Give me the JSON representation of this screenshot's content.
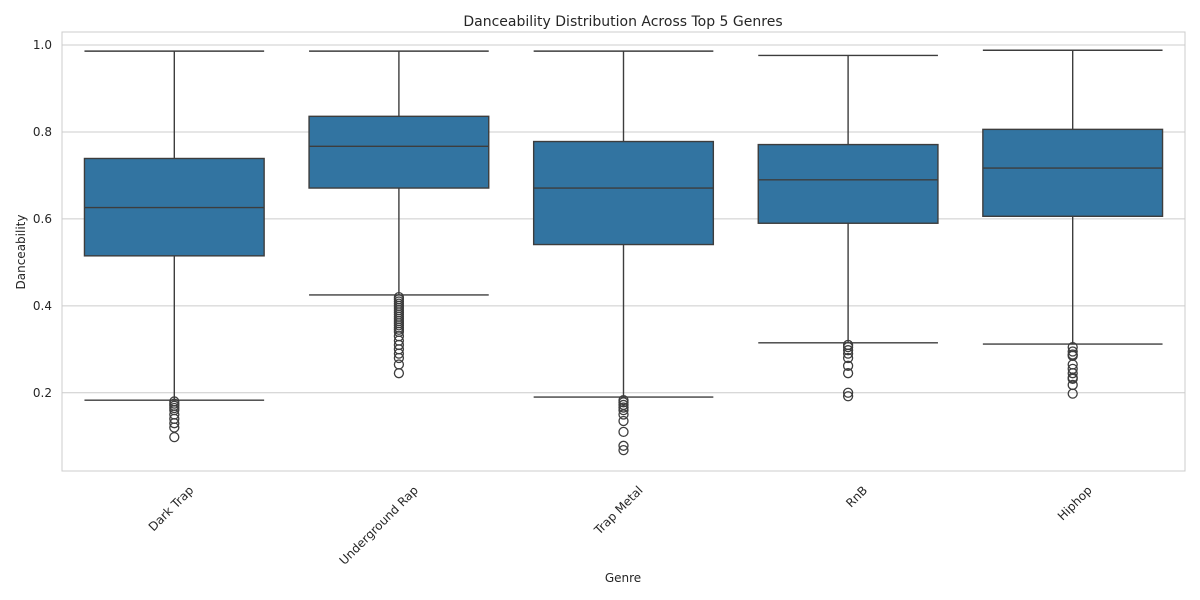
{
  "chart_data": {
    "type": "box",
    "title": "Danceability Distribution Across Top 5 Genres",
    "xlabel": "Genre",
    "ylabel": "Danceability",
    "ylim": [
      0.02,
      1.03
    ],
    "yticks": [
      "0.2",
      "0.4",
      "0.6",
      "0.8",
      "1.0"
    ],
    "grid": true,
    "legend": "none",
    "box_color": "#3274a1",
    "line_color": "#3d3d3d",
    "grid_color": "#cccccc",
    "categories": [
      "Dark Trap",
      "Underground Rap",
      "Trap Metal",
      "RnB",
      "Hiphop"
    ],
    "boxes": [
      {
        "category": "Dark Trap",
        "whisker_low": 0.183,
        "q1": 0.515,
        "median": 0.626,
        "q3": 0.739,
        "whisker_high": 0.986,
        "outliers": [
          0.18,
          0.175,
          0.17,
          0.165,
          0.16,
          0.15,
          0.14,
          0.13,
          0.12,
          0.098
        ]
      },
      {
        "category": "Underground Rap",
        "whisker_low": 0.425,
        "q1": 0.671,
        "median": 0.767,
        "q3": 0.836,
        "whisker_high": 0.986,
        "outliers": [
          0.42,
          0.415,
          0.41,
          0.405,
          0.4,
          0.395,
          0.39,
          0.385,
          0.38,
          0.375,
          0.37,
          0.365,
          0.36,
          0.355,
          0.35,
          0.345,
          0.34,
          0.33,
          0.32,
          0.31,
          0.3,
          0.29,
          0.28,
          0.265,
          0.245
        ]
      },
      {
        "category": "Trap Metal",
        "whisker_low": 0.19,
        "q1": 0.541,
        "median": 0.671,
        "q3": 0.778,
        "whisker_high": 0.986,
        "outliers": [
          0.183,
          0.178,
          0.172,
          0.166,
          0.16,
          0.15,
          0.135,
          0.11,
          0.078,
          0.068
        ]
      },
      {
        "category": "RnB",
        "whisker_low": 0.315,
        "q1": 0.59,
        "median": 0.69,
        "q3": 0.771,
        "whisker_high": 0.976,
        "outliers": [
          0.31,
          0.305,
          0.298,
          0.29,
          0.28,
          0.262,
          0.245,
          0.2,
          0.192
        ]
      },
      {
        "category": "Hiphop",
        "whisker_low": 0.312,
        "q1": 0.606,
        "median": 0.717,
        "q3": 0.806,
        "whisker_high": 0.988,
        "outliers": [
          0.305,
          0.295,
          0.288,
          0.285,
          0.265,
          0.255,
          0.245,
          0.235,
          0.232,
          0.218,
          0.198
        ]
      }
    ]
  }
}
